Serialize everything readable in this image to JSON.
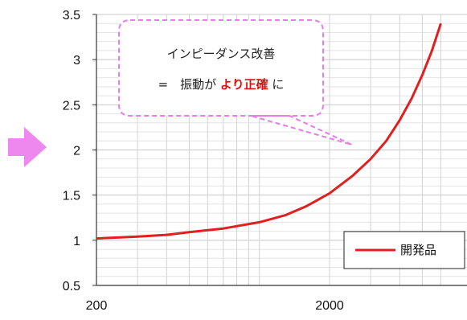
{
  "chart_data": {
    "type": "line",
    "x_scale": "log",
    "xlim": [
      200,
      6000
    ],
    "ylim": [
      0.5,
      3.5
    ],
    "x_ticks": [
      "200",
      "2000"
    ],
    "y_ticks": [
      "3.5",
      "3",
      "2.5",
      "2",
      "1.5",
      "1",
      "0.5"
    ],
    "grid": true,
    "legend_position": "bottom-right",
    "series": [
      {
        "name": "開発品",
        "color": "#e02020",
        "x": [
          200,
          300,
          400,
          500,
          700,
          1000,
          1300,
          1600,
          2000,
          2500,
          3000,
          3500,
          4000,
          4500,
          5000,
          5500,
          6000
        ],
        "y": [
          1.02,
          1.04,
          1.06,
          1.09,
          1.13,
          1.2,
          1.28,
          1.38,
          1.52,
          1.71,
          1.9,
          2.1,
          2.33,
          2.57,
          2.83,
          3.1,
          3.4
        ]
      }
    ]
  },
  "annotation": {
    "line1": "インピーダンス改善",
    "line2_prefix": "=　振動が",
    "line2_emphasis": "より正確",
    "line2_suffix": "に",
    "border_color": "#e87ce8"
  },
  "arrow": {
    "color": "#ee88ee",
    "icon": "right-arrow-icon"
  }
}
